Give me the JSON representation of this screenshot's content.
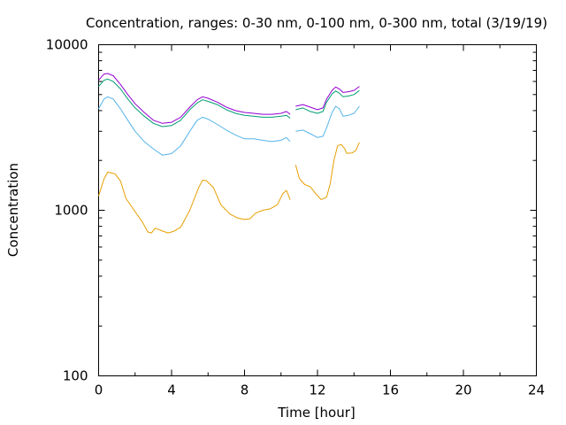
{
  "chart_data": {
    "type": "line",
    "title": "Concentration, ranges: 0-30 nm, 0-100 nm, 0-300 nm, total (3/19/19)",
    "xlabel": "Time [hour]",
    "ylabel": "Concentration",
    "xlim": [
      0,
      24
    ],
    "ylim": [
      100,
      10000
    ],
    "yscale": "log",
    "x_ticks": [
      0,
      4,
      8,
      12,
      16,
      20,
      24
    ],
    "x_tick_labels": [
      "0",
      "4",
      "8",
      "12",
      "16",
      "20",
      "24"
    ],
    "y_major_ticks": [
      100,
      1000,
      10000
    ],
    "y_tick_labels": [
      "100",
      "1000",
      "10000"
    ],
    "grid": false,
    "legend": "none",
    "colors": {
      "series_0_30": "#e69f00",
      "series_0_100": "#56b4e9",
      "series_0_300": "#009e73",
      "series_total": "#9400d3"
    },
    "series": [
      {
        "color": "#e69f00",
        "segments": [
          [
            [
              0,
              1220
            ],
            [
              0.3,
              1550
            ],
            [
              0.5,
              1700
            ],
            [
              0.9,
              1660
            ],
            [
              1.2,
              1500
            ],
            [
              1.5,
              1180
            ],
            [
              2.0,
              980
            ],
            [
              2.4,
              850
            ],
            [
              2.7,
              740
            ],
            [
              2.9,
              730
            ],
            [
              3.1,
              780
            ],
            [
              3.5,
              750
            ],
            [
              3.8,
              730
            ],
            [
              4.1,
              745
            ],
            [
              4.5,
              790
            ],
            [
              5.0,
              1000
            ],
            [
              5.5,
              1380
            ],
            [
              5.7,
              1520
            ],
            [
              5.9,
              1510
            ],
            [
              6.3,
              1370
            ],
            [
              6.7,
              1080
            ],
            [
              7.2,
              950
            ],
            [
              7.6,
              900
            ],
            [
              8.0,
              880
            ],
            [
              8.3,
              890
            ],
            [
              8.6,
              960
            ],
            [
              9.0,
              1000
            ],
            [
              9.4,
              1020
            ],
            [
              9.8,
              1080
            ],
            [
              10.1,
              1260
            ],
            [
              10.3,
              1320
            ],
            [
              10.5,
              1160
            ]
          ],
          [
            [
              10.8,
              1880
            ],
            [
              11.0,
              1560
            ],
            [
              11.3,
              1430
            ],
            [
              11.6,
              1390
            ],
            [
              11.9,
              1260
            ],
            [
              12.2,
              1160
            ],
            [
              12.5,
              1200
            ],
            [
              12.7,
              1450
            ],
            [
              12.9,
              2000
            ],
            [
              13.1,
              2450
            ],
            [
              13.3,
              2500
            ],
            [
              13.5,
              2350
            ],
            [
              13.6,
              2210
            ],
            [
              13.9,
              2220
            ],
            [
              14.1,
              2300
            ],
            [
              14.3,
              2570
            ]
          ]
        ]
      },
      {
        "color": "#56b4e9",
        "segments": [
          [
            [
              0,
              4100
            ],
            [
              0.3,
              4700
            ],
            [
              0.5,
              4850
            ],
            [
              0.8,
              4700
            ],
            [
              1.2,
              4100
            ],
            [
              1.6,
              3500
            ],
            [
              2.0,
              3000
            ],
            [
              2.5,
              2600
            ],
            [
              3.0,
              2350
            ],
            [
              3.5,
              2150
            ],
            [
              4.0,
              2200
            ],
            [
              4.5,
              2450
            ],
            [
              5.0,
              3000
            ],
            [
              5.4,
              3500
            ],
            [
              5.7,
              3650
            ],
            [
              6.0,
              3550
            ],
            [
              6.5,
              3300
            ],
            [
              7.0,
              3050
            ],
            [
              7.5,
              2850
            ],
            [
              8.0,
              2700
            ],
            [
              8.5,
              2700
            ],
            [
              9.0,
              2650
            ],
            [
              9.5,
              2600
            ],
            [
              10.0,
              2650
            ],
            [
              10.3,
              2750
            ],
            [
              10.5,
              2600
            ]
          ],
          [
            [
              10.8,
              3000
            ],
            [
              11.2,
              3050
            ],
            [
              11.6,
              2900
            ],
            [
              12.0,
              2750
            ],
            [
              12.3,
              2800
            ],
            [
              12.5,
              3150
            ],
            [
              12.8,
              3900
            ],
            [
              13.0,
              4250
            ],
            [
              13.2,
              4100
            ],
            [
              13.4,
              3700
            ],
            [
              13.7,
              3750
            ],
            [
              14.0,
              3850
            ],
            [
              14.3,
              4250
            ]
          ]
        ]
      },
      {
        "color": "#009e73",
        "segments": [
          [
            [
              0,
              5600
            ],
            [
              0.3,
              6100
            ],
            [
              0.5,
              6200
            ],
            [
              0.8,
              6000
            ],
            [
              1.2,
              5400
            ],
            [
              1.6,
              4700
            ],
            [
              2.0,
              4150
            ],
            [
              2.5,
              3700
            ],
            [
              3.0,
              3350
            ],
            [
              3.5,
              3200
            ],
            [
              4.0,
              3250
            ],
            [
              4.5,
              3500
            ],
            [
              5.0,
              4050
            ],
            [
              5.4,
              4450
            ],
            [
              5.7,
              4650
            ],
            [
              6.0,
              4550
            ],
            [
              6.5,
              4350
            ],
            [
              7.0,
              4050
            ],
            [
              7.5,
              3850
            ],
            [
              8.0,
              3750
            ],
            [
              8.5,
              3700
            ],
            [
              9.0,
              3650
            ],
            [
              9.5,
              3650
            ],
            [
              10.0,
              3700
            ],
            [
              10.3,
              3750
            ],
            [
              10.5,
              3600
            ]
          ],
          [
            [
              10.8,
              4050
            ],
            [
              11.2,
              4150
            ],
            [
              11.6,
              3950
            ],
            [
              12.0,
              3850
            ],
            [
              12.3,
              3950
            ],
            [
              12.5,
              4500
            ],
            [
              12.8,
              5050
            ],
            [
              13.0,
              5250
            ],
            [
              13.2,
              5100
            ],
            [
              13.4,
              4850
            ],
            [
              13.7,
              4900
            ],
            [
              14.0,
              5000
            ],
            [
              14.3,
              5300
            ]
          ]
        ]
      },
      {
        "color": "#9400d3",
        "segments": [
          [
            [
              0,
              6100
            ],
            [
              0.3,
              6650
            ],
            [
              0.5,
              6700
            ],
            [
              0.8,
              6500
            ],
            [
              1.2,
              5750
            ],
            [
              1.6,
              5000
            ],
            [
              2.0,
              4400
            ],
            [
              2.5,
              3900
            ],
            [
              3.0,
              3500
            ],
            [
              3.5,
              3350
            ],
            [
              4.0,
              3400
            ],
            [
              4.5,
              3650
            ],
            [
              5.0,
              4200
            ],
            [
              5.4,
              4650
            ],
            [
              5.7,
              4850
            ],
            [
              6.0,
              4750
            ],
            [
              6.5,
              4500
            ],
            [
              7.0,
              4200
            ],
            [
              7.5,
              4000
            ],
            [
              8.0,
              3900
            ],
            [
              8.5,
              3850
            ],
            [
              9.0,
              3800
            ],
            [
              9.5,
              3800
            ],
            [
              10.0,
              3850
            ],
            [
              10.3,
              3950
            ],
            [
              10.5,
              3800
            ]
          ],
          [
            [
              10.8,
              4250
            ],
            [
              11.2,
              4350
            ],
            [
              11.6,
              4200
            ],
            [
              12.0,
              4050
            ],
            [
              12.3,
              4150
            ],
            [
              12.5,
              4700
            ],
            [
              12.8,
              5300
            ],
            [
              13.0,
              5550
            ],
            [
              13.2,
              5400
            ],
            [
              13.4,
              5150
            ],
            [
              13.7,
              5200
            ],
            [
              14.0,
              5300
            ],
            [
              14.3,
              5600
            ]
          ]
        ]
      }
    ]
  }
}
